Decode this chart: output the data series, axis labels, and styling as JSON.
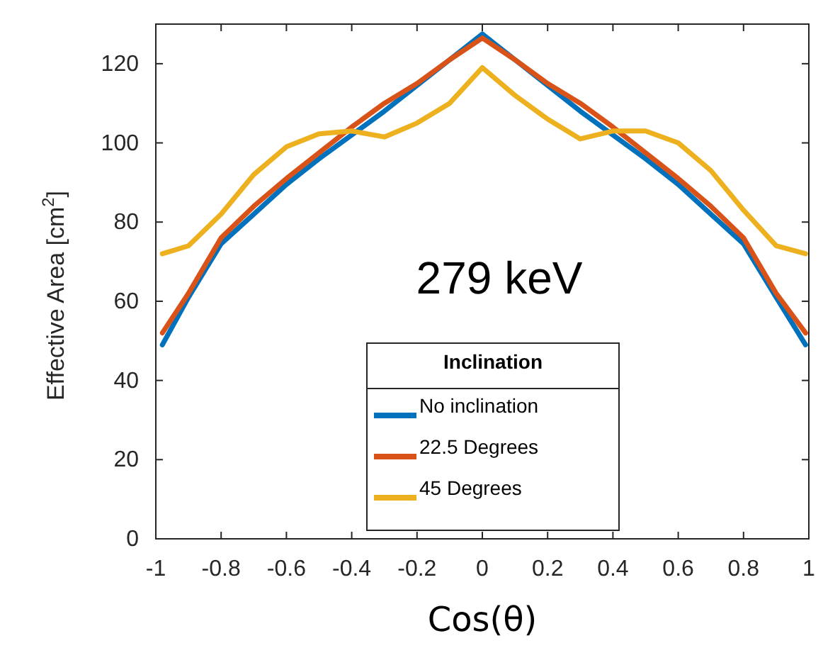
{
  "chart_data": {
    "type": "line",
    "xlabel": "Cos(θ)",
    "ylabel": "Effective Area [cm$^{2}$]",
    "legend_title": "Inclination",
    "legend": "bottom",
    "annotations": [
      "279 keV"
    ],
    "xlim": [
      -1,
      1
    ],
    "ylim": [
      0,
      130
    ],
    "xticks": [
      -1,
      -0.8,
      -0.6,
      -0.4,
      -0.2,
      0,
      0.2,
      0.4,
      0.6,
      0.8,
      1
    ],
    "yticks": [
      0,
      20,
      40,
      60,
      80,
      100,
      120
    ],
    "x": [
      -0.98,
      -0.9,
      -0.8,
      -0.7,
      -0.6,
      -0.5,
      -0.4,
      -0.3,
      -0.2,
      -0.1,
      0,
      0.1,
      0.2,
      0.3,
      0.4,
      0.5,
      0.6,
      0.7,
      0.8,
      0.9,
      0.99
    ],
    "series": [
      {
        "name": "No inclination",
        "color": "#0072bd",
        "values": [
          49,
          61,
          74.5,
          82,
          89.5,
          96,
          102,
          108,
          114.5,
          121,
          127.5,
          121,
          114.5,
          108,
          102,
          96,
          89.5,
          82,
          74.5,
          61,
          49
        ]
      },
      {
        "name": "22.5 Degrees",
        "color": "#d95319",
        "values": [
          52,
          62,
          76,
          84,
          91,
          97.5,
          104,
          110,
          115,
          121,
          126.5,
          121,
          115,
          110,
          104,
          97.5,
          91,
          84,
          76,
          62,
          52
        ]
      },
      {
        "name": "45 Degrees",
        "color": "#edb120",
        "values": [
          72,
          74,
          82,
          92,
          99,
          102.3,
          103,
          101.5,
          105,
          110,
          119,
          112,
          106,
          101,
          103,
          103,
          100,
          93,
          83,
          74,
          72
        ]
      }
    ]
  }
}
